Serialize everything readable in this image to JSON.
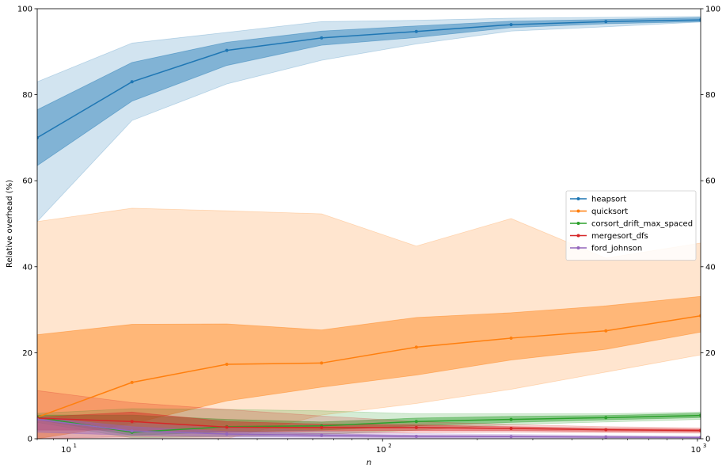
{
  "chart_data": {
    "type": "line",
    "xlabel": "n",
    "ylabel": "Relative overhead (%)",
    "x_scale": "log",
    "xlim": [
      8,
      1024
    ],
    "ylim": [
      0,
      100
    ],
    "yticks": [
      0,
      20,
      40,
      60,
      80,
      100
    ],
    "xticks": [
      10,
      100,
      1000
    ],
    "xtick_labels": [
      "10",
      "10",
      "10"
    ],
    "xtick_exponents": [
      "1",
      "2",
      "3"
    ],
    "grid": false,
    "legend_placement": "center-right",
    "x": [
      8,
      16,
      32,
      64,
      128,
      256,
      512,
      1024
    ],
    "series": [
      {
        "name": "heapsort",
        "color": "#1f77b4",
        "values": [
          70,
          83,
          90.3,
          93.2,
          94.7,
          96.3,
          97.0,
          97.4
        ],
        "inner_low": [
          63.5,
          78.5,
          86.8,
          91.5,
          93.3,
          95.6,
          96.5,
          97.0
        ],
        "inner_high": [
          76.5,
          87.5,
          92.2,
          94.8,
          96.0,
          97.1,
          97.5,
          97.9
        ],
        "outer_low": [
          50.5,
          74,
          82.5,
          88,
          91.8,
          94.8,
          95.8,
          96.9
        ],
        "outer_high": [
          83,
          92,
          94.5,
          97,
          97.3,
          97.8,
          98.0,
          98.2
        ]
      },
      {
        "name": "quicksort",
        "color": "#ff7f0e",
        "values": [
          5,
          13.1,
          17.3,
          17.6,
          21.3,
          23.4,
          25.1,
          28.6
        ],
        "inner_low": [
          0,
          3.5,
          8.8,
          12,
          14.8,
          18.3,
          20.8,
          24.8
        ],
        "inner_high": [
          24.2,
          26.6,
          26.7,
          25.3,
          28.2,
          29.3,
          30.9,
          33.1
        ],
        "outer_low": [
          0,
          0,
          0,
          5.5,
          8.2,
          11.5,
          15.5,
          19.5
        ],
        "outer_high": [
          50.5,
          53.6,
          53,
          52.3,
          44.8,
          51.2,
          42,
          45.5
        ]
      },
      {
        "name": "corsort_drift_max_spaced",
        "color": "#2ca02c",
        "values": [
          5,
          1.5,
          2.8,
          3.0,
          4.0,
          4.5,
          4.9,
          5.4
        ],
        "inner_low": [
          4.4,
          0.8,
          1.6,
          2.0,
          3.0,
          3.8,
          4.4,
          4.9
        ],
        "inner_high": [
          5.5,
          5.5,
          4.5,
          3.9,
          4.8,
          5.2,
          5.4,
          5.9
        ],
        "outer_low": [
          3.8,
          0.2,
          0.5,
          1.0,
          2.0,
          3.3,
          3.9,
          4.5
        ],
        "outer_high": [
          5.9,
          7,
          6.8,
          6.5,
          5.8,
          5.8,
          5.8,
          6.2
        ]
      },
      {
        "name": "mergesort_dfs",
        "color": "#d62728",
        "values": [
          4.8,
          4.0,
          2.7,
          2.6,
          2.6,
          2.4,
          2.1,
          1.9
        ],
        "inner_low": [
          2.0,
          2.0,
          1.5,
          1.8,
          1.9,
          1.9,
          1.7,
          1.6
        ],
        "inner_high": [
          5.0,
          6.2,
          4.0,
          3.4,
          3.2,
          2.8,
          2.4,
          2.2
        ],
        "outer_low": [
          0,
          0.5,
          0.5,
          1.2,
          1.4,
          1.5,
          1.4,
          1.3
        ],
        "outer_high": [
          11.2,
          8.4,
          6.8,
          5.3,
          4.0,
          3.3,
          2.8,
          2.5
        ]
      },
      {
        "name": "ford_johnson",
        "color": "#9467bd",
        "values": [
          4.5,
          1.8,
          1.1,
          0.8,
          0.55,
          0.5,
          0.4,
          0.3
        ],
        "inner_low": [
          1.5,
          0.8,
          0.5,
          0.4,
          0.3,
          0.3,
          0.25,
          0.2
        ],
        "inner_high": [
          5.0,
          2.8,
          1.7,
          1.2,
          0.8,
          0.7,
          0.55,
          0.4
        ],
        "outer_low": [
          0,
          0.1,
          0.1,
          0.1,
          0.1,
          0.1,
          0.1,
          0.1
        ],
        "outer_high": [
          5.0,
          4.0,
          2.6,
          1.8,
          1.2,
          1.0,
          0.8,
          0.6
        ]
      }
    ]
  }
}
